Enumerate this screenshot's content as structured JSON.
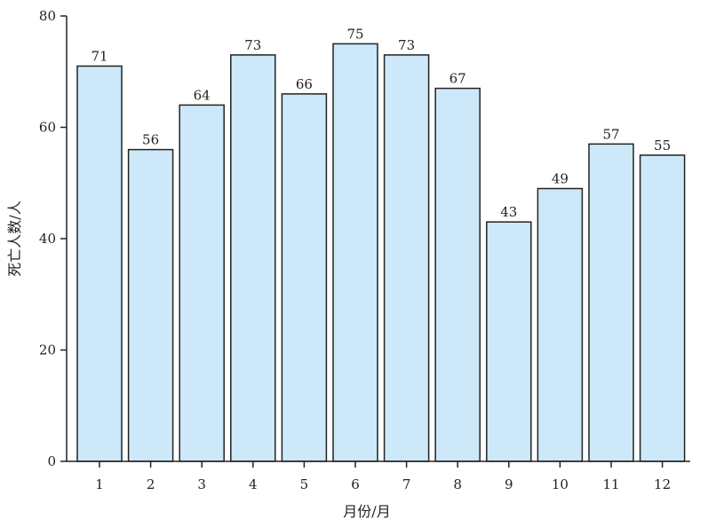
{
  "chart_data": {
    "type": "bar",
    "categories": [
      "1",
      "2",
      "3",
      "4",
      "5",
      "6",
      "7",
      "8",
      "9",
      "10",
      "11",
      "12"
    ],
    "values": [
      71,
      56,
      64,
      73,
      66,
      75,
      73,
      67,
      43,
      49,
      57,
      55
    ],
    "data_labels": [
      "71",
      "56",
      "64",
      "73",
      "66",
      "75",
      "73",
      "67",
      "43",
      "49",
      "57",
      "55"
    ],
    "xlabel": "月份/月",
    "ylabel": "死亡人数/人",
    "ylim": [
      0,
      80
    ],
    "yticks": [
      "0",
      "20",
      "40",
      "60",
      "80"
    ],
    "ytick_values": [
      0,
      20,
      40,
      60,
      80
    ],
    "grid": false,
    "bar_color": "#cde9f9",
    "edge_color": "#222222"
  }
}
